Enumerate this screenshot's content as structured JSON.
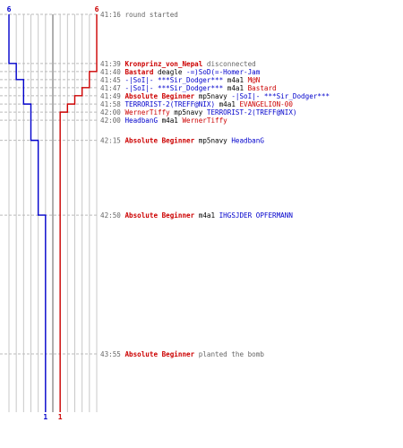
{
  "colors": {
    "blue": "#0000cc",
    "red": "#cc0000",
    "gray": "#666666",
    "grid": "#c8c8c8",
    "center": "#7a7a7a",
    "guide": "#bbbbbb"
  },
  "chart_data": {
    "type": "line",
    "title": "",
    "xlabel": "",
    "ylabel": "",
    "grid": true,
    "legend": "none",
    "x_range": [
      0,
      6
    ],
    "blue_series": {
      "start_count": 6,
      "end_count": 1,
      "steps": [
        {
          "time": "41:16",
          "count": 6
        },
        {
          "time": "41:39",
          "count": 5
        },
        {
          "time": "41:45",
          "count": 4
        },
        {
          "time": "41:58",
          "count": 3
        },
        {
          "time": "42:15",
          "count": 2
        },
        {
          "time": "42:50",
          "count": 1
        }
      ]
    },
    "red_series": {
      "start_count": 6,
      "end_count": 1,
      "steps": [
        {
          "time": "41:16",
          "count": 6
        },
        {
          "time": "41:40",
          "count": 5
        },
        {
          "time": "41:47",
          "count": 4
        },
        {
          "time": "41:49",
          "count": 3
        },
        {
          "time": "41:58",
          "count": 2
        },
        {
          "time": "42:00",
          "count": 1
        }
      ]
    },
    "events": [
      {
        "time": "41:16",
        "parts": [
          {
            "t": "round started",
            "c": "gray",
            "b": false
          }
        ]
      },
      {
        "time": "41:39",
        "parts": [
          {
            "t": "Kronprinz_von_Nepal",
            "c": "red",
            "b": true
          },
          {
            "t": " disconnected",
            "c": "gray",
            "b": false
          }
        ]
      },
      {
        "time": "41:40",
        "parts": [
          {
            "t": "Bastard",
            "c": "red",
            "b": true
          },
          {
            "t": " deagle ",
            "c": "black",
            "b": false
          },
          {
            "t": "-=)SoD(=-Homer-Jam",
            "c": "blue",
            "b": false
          }
        ]
      },
      {
        "time": "41:45",
        "parts": [
          {
            "t": "-|SoI|- ***Sir_Dodger***",
            "c": "blue",
            "b": false
          },
          {
            "t": " m4a1 ",
            "c": "black",
            "b": false
          },
          {
            "t": "M@N",
            "c": "red",
            "b": false
          }
        ]
      },
      {
        "time": "41:47",
        "parts": [
          {
            "t": "-|SoI|- ***Sir_Dodger***",
            "c": "blue",
            "b": false
          },
          {
            "t": " m4a1 ",
            "c": "black",
            "b": false
          },
          {
            "t": "Bastard",
            "c": "red",
            "b": false
          }
        ]
      },
      {
        "time": "41:49",
        "parts": [
          {
            "t": "Absolute Beginner",
            "c": "red",
            "b": true
          },
          {
            "t": " mp5navy ",
            "c": "black",
            "b": false
          },
          {
            "t": "-|SoI|- ***Sir_Dodger***",
            "c": "blue",
            "b": false
          }
        ]
      },
      {
        "time": "41:58",
        "parts": [
          {
            "t": "TERRORIST-2(TREFF@NIX)",
            "c": "blue",
            "b": false
          },
          {
            "t": " m4a1 ",
            "c": "black",
            "b": false
          },
          {
            "t": "EVANGELION-00",
            "c": "red",
            "b": false
          }
        ]
      },
      {
        "time": "42:00",
        "parts": [
          {
            "t": "WernerTiffy",
            "c": "red",
            "b": false
          },
          {
            "t": " mp5navy ",
            "c": "black",
            "b": false
          },
          {
            "t": "TERRORIST-2(TREFF@NIX)",
            "c": "blue",
            "b": false
          }
        ]
      },
      {
        "time": "42:00",
        "parts": [
          {
            "t": "HeadbanG",
            "c": "blue",
            "b": false
          },
          {
            "t": " m4a1 ",
            "c": "black",
            "b": false
          },
          {
            "t": "WernerTiffy",
            "c": "red",
            "b": false
          }
        ]
      },
      {
        "time": "42:15",
        "parts": [
          {
            "t": "Absolute Beginner",
            "c": "red",
            "b": true
          },
          {
            "t": " mp5navy ",
            "c": "black",
            "b": false
          },
          {
            "t": "HeadbanG",
            "c": "blue",
            "b": false
          }
        ]
      },
      {
        "time": "42:50",
        "parts": [
          {
            "t": "Absolute Beginner",
            "c": "red",
            "b": true
          },
          {
            "t": " m4a1 ",
            "c": "black",
            "b": false
          },
          {
            "t": "IHGSJDER OPFERMANN",
            "c": "blue",
            "b": false
          }
        ]
      },
      {
        "time": "43:55",
        "parts": [
          {
            "t": "Absolute Beginner",
            "c": "red",
            "b": true
          },
          {
            "t": " planted the bomb",
            "c": "gray",
            "b": false
          }
        ]
      }
    ]
  }
}
